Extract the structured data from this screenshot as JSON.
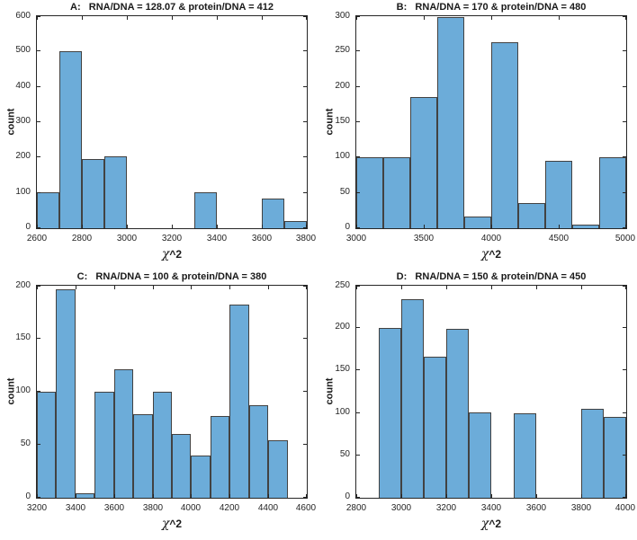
{
  "figure": {
    "background": "#ffffff",
    "bar_fill": "#6cacd9",
    "bar_edge": "#424242",
    "axis_color": "#262626",
    "text_color": "#1a1a1a"
  },
  "chart_data": [
    {
      "type": "bar",
      "subtype": "histogram",
      "title": "A:   RNA/DNA = 128.07 & protein/DNA = 412",
      "ylabel": "count",
      "xlabel_chi": "χ",
      "xlabel_sup": "^2",
      "xlim": [
        2600,
        3800
      ],
      "ylim": [
        0,
        600
      ],
      "xticks": [
        2600,
        2800,
        3000,
        3200,
        3400,
        3600,
        3800
      ],
      "yticks": [
        0,
        100,
        200,
        300,
        400,
        500,
        600
      ],
      "bin_width": 100,
      "grid": false,
      "bins": [
        {
          "x": 2600,
          "count": 102
        },
        {
          "x": 2700,
          "count": 500
        },
        {
          "x": 2800,
          "count": 196
        },
        {
          "x": 2900,
          "count": 203
        },
        {
          "x": 3300,
          "count": 102
        },
        {
          "x": 3600,
          "count": 84
        },
        {
          "x": 3700,
          "count": 20
        }
      ]
    },
    {
      "type": "bar",
      "subtype": "histogram",
      "title": "B:   RNA/DNA = 170 & protein/DNA = 480",
      "ylabel": "count",
      "xlabel_chi": "χ",
      "xlabel_sup": "^2",
      "xlim": [
        3000,
        5000
      ],
      "ylim": [
        0,
        300
      ],
      "xticks": [
        3000,
        3500,
        4000,
        4500,
        5000
      ],
      "yticks": [
        0,
        50,
        100,
        150,
        200,
        250,
        300
      ],
      "bin_width": 200,
      "grid": false,
      "bins": [
        {
          "x": 3000,
          "count": 100
        },
        {
          "x": 3200,
          "count": 100
        },
        {
          "x": 3400,
          "count": 185
        },
        {
          "x": 3600,
          "count": 299
        },
        {
          "x": 3800,
          "count": 17
        },
        {
          "x": 4000,
          "count": 263
        },
        {
          "x": 4200,
          "count": 36
        },
        {
          "x": 4400,
          "count": 95
        },
        {
          "x": 4600,
          "count": 5
        },
        {
          "x": 4800,
          "count": 100
        }
      ]
    },
    {
      "type": "bar",
      "subtype": "histogram",
      "title": "C:   RNA/DNA = 100 & protein/DNA = 380",
      "ylabel": "count",
      "xlabel_chi": "χ",
      "xlabel_sup": "^2",
      "xlim": [
        3200,
        4600
      ],
      "ylim": [
        0,
        200
      ],
      "xticks": [
        3200,
        3400,
        3600,
        3800,
        4000,
        4200,
        4400,
        4600
      ],
      "yticks": [
        0,
        50,
        100,
        150,
        200
      ],
      "bin_width": 100,
      "grid": false,
      "bins": [
        {
          "x": 3200,
          "count": 100
        },
        {
          "x": 3300,
          "count": 197
        },
        {
          "x": 3400,
          "count": 4
        },
        {
          "x": 3500,
          "count": 100
        },
        {
          "x": 3600,
          "count": 121
        },
        {
          "x": 3700,
          "count": 79
        },
        {
          "x": 3800,
          "count": 100
        },
        {
          "x": 3900,
          "count": 60
        },
        {
          "x": 4000,
          "count": 40
        },
        {
          "x": 4100,
          "count": 77
        },
        {
          "x": 4200,
          "count": 182
        },
        {
          "x": 4300,
          "count": 87
        },
        {
          "x": 4400,
          "count": 54
        }
      ]
    },
    {
      "type": "bar",
      "subtype": "histogram",
      "title": "D:   RNA/DNA = 150 & protein/DNA = 450",
      "ylabel": "count",
      "xlabel_chi": "χ",
      "xlabel_sup": "^2",
      "xlim": [
        2800,
        4000
      ],
      "ylim": [
        0,
        250
      ],
      "xticks": [
        2800,
        3000,
        3200,
        3400,
        3600,
        3800,
        4000
      ],
      "yticks": [
        0,
        50,
        100,
        150,
        200,
        250
      ],
      "bin_width": 100,
      "grid": false,
      "bins": [
        {
          "x": 2900,
          "count": 200
        },
        {
          "x": 3000,
          "count": 234
        },
        {
          "x": 3100,
          "count": 166
        },
        {
          "x": 3200,
          "count": 199
        },
        {
          "x": 3300,
          "count": 101
        },
        {
          "x": 3500,
          "count": 100
        },
        {
          "x": 3800,
          "count": 105
        },
        {
          "x": 3900,
          "count": 95
        }
      ]
    }
  ]
}
